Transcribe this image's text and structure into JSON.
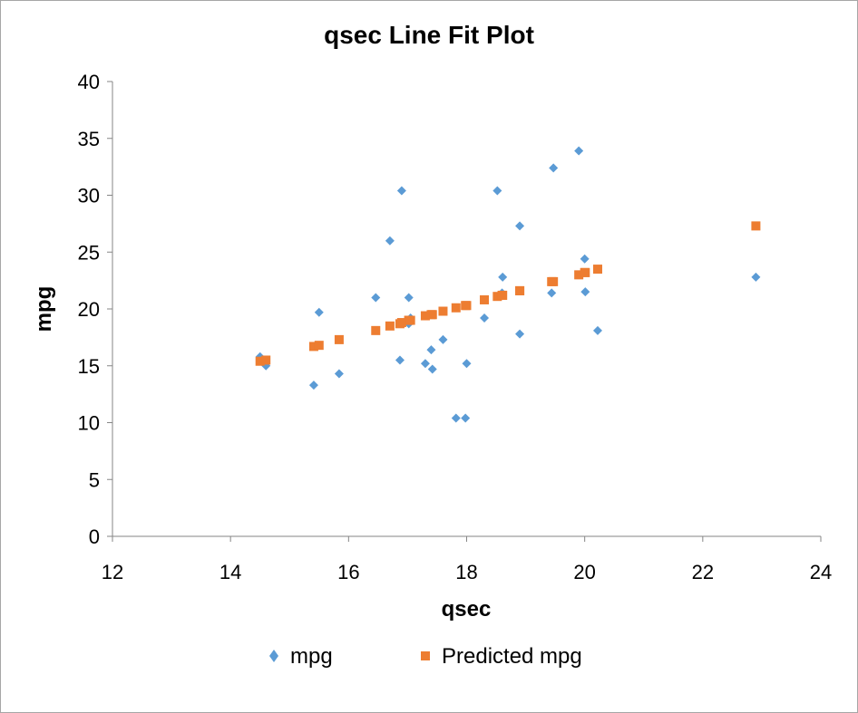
{
  "chart_data": {
    "type": "scatter",
    "title": "qsec Line Fit  Plot",
    "xlabel": "qsec",
    "ylabel": "mpg",
    "xlim": [
      12,
      24
    ],
    "ylim": [
      0,
      40
    ],
    "x_ticks": [
      "12",
      "14",
      "16",
      "18",
      "20",
      "22",
      "24"
    ],
    "y_ticks": [
      "0",
      "5",
      "10",
      "15",
      "20",
      "25",
      "30",
      "35",
      "40"
    ],
    "grid": false,
    "legend_position": "bottom",
    "series": [
      {
        "name": "mpg",
        "marker": "diamond",
        "color": "#5b9bd5",
        "points": [
          [
            16.46,
            21.0
          ],
          [
            17.02,
            21.0
          ],
          [
            18.61,
            22.8
          ],
          [
            19.44,
            21.4
          ],
          [
            17.02,
            18.7
          ],
          [
            20.22,
            18.1
          ],
          [
            15.84,
            14.3
          ],
          [
            20.0,
            24.4
          ],
          [
            22.9,
            22.8
          ],
          [
            18.3,
            19.2
          ],
          [
            18.9,
            17.8
          ],
          [
            17.4,
            16.4
          ],
          [
            17.6,
            17.3
          ],
          [
            18.0,
            15.2
          ],
          [
            17.98,
            10.4
          ],
          [
            17.82,
            10.4
          ],
          [
            17.42,
            14.7
          ],
          [
            19.47,
            32.4
          ],
          [
            18.52,
            30.4
          ],
          [
            19.9,
            33.9
          ],
          [
            20.01,
            21.5
          ],
          [
            16.87,
            15.5
          ],
          [
            17.3,
            15.2
          ],
          [
            15.41,
            13.3
          ],
          [
            17.05,
            19.2
          ],
          [
            18.9,
            27.3
          ],
          [
            16.7,
            26.0
          ],
          [
            16.9,
            30.4
          ],
          [
            14.5,
            15.8
          ],
          [
            15.5,
            19.7
          ],
          [
            14.6,
            15.0
          ],
          [
            18.6,
            21.4
          ]
        ]
      },
      {
        "name": "Predicted mpg",
        "marker": "square",
        "color": "#ed7d31",
        "points": [
          [
            16.46,
            18.1
          ],
          [
            17.02,
            19.0
          ],
          [
            18.61,
            21.2
          ],
          [
            19.44,
            22.4
          ],
          [
            17.02,
            19.0
          ],
          [
            20.22,
            23.5
          ],
          [
            15.84,
            17.3
          ],
          [
            20.0,
            23.2
          ],
          [
            22.9,
            27.3
          ],
          [
            18.3,
            20.8
          ],
          [
            18.9,
            21.6
          ],
          [
            17.4,
            19.5
          ],
          [
            17.6,
            19.8
          ],
          [
            18.0,
            20.3
          ],
          [
            17.98,
            20.3
          ],
          [
            17.82,
            20.1
          ],
          [
            17.42,
            19.5
          ],
          [
            19.47,
            22.4
          ],
          [
            18.52,
            21.1
          ],
          [
            19.9,
            23.0
          ],
          [
            20.01,
            23.2
          ],
          [
            16.87,
            18.7
          ],
          [
            17.3,
            19.4
          ],
          [
            15.41,
            16.7
          ],
          [
            17.05,
            19.0
          ],
          [
            18.9,
            21.6
          ],
          [
            16.7,
            18.5
          ],
          [
            16.9,
            18.8
          ],
          [
            14.5,
            15.4
          ],
          [
            15.5,
            16.8
          ],
          [
            14.6,
            15.5
          ],
          [
            18.6,
            21.2
          ]
        ]
      }
    ]
  }
}
